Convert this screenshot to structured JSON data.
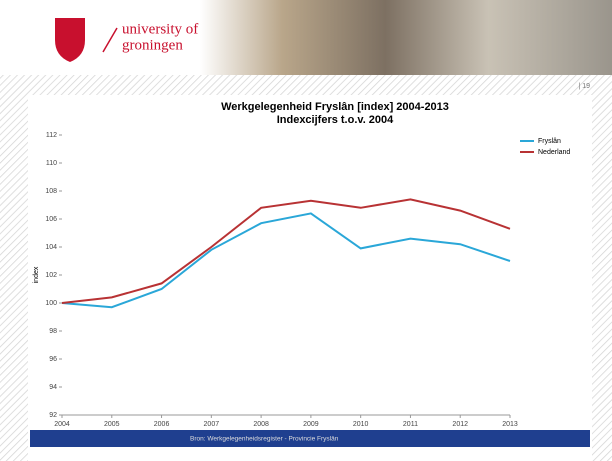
{
  "header": {
    "university": "university of",
    "groningen": "groningen",
    "slide_number": "| 19"
  },
  "chart_data": {
    "type": "line",
    "title": "Werkgelegenheid Fryslân [index] 2004-2013",
    "subtitle": "Indexcijfers t.o.v. 2004",
    "ylabel": "index",
    "x": [
      2004,
      2005,
      2006,
      2007,
      2008,
      2009,
      2010,
      2011,
      2012,
      2013
    ],
    "xlim": [
      2004,
      2013
    ],
    "xticks": [
      2004,
      2005,
      2006,
      2007,
      2008,
      2009,
      2010,
      2011,
      2012,
      2013
    ],
    "ylim": [
      92,
      112
    ],
    "yticks": [
      92,
      94,
      96,
      98,
      100,
      102,
      104,
      106,
      108,
      110,
      112
    ],
    "legend": "right",
    "series": [
      {
        "name": "Fryslân",
        "color": "#2aa7d8",
        "values": [
          100,
          99.7,
          101,
          103.8,
          105.7,
          106.4,
          103.9,
          104.6,
          104.2,
          103
        ]
      },
      {
        "name": "Nederland",
        "color": "#b83234",
        "values": [
          100,
          100.4,
          101.4,
          104,
          106.8,
          107.3,
          106.8,
          107.4,
          106.6,
          105.3
        ]
      }
    ],
    "source": "Bron: Werkgelegenheidsregister - Provincie Fryslân"
  }
}
